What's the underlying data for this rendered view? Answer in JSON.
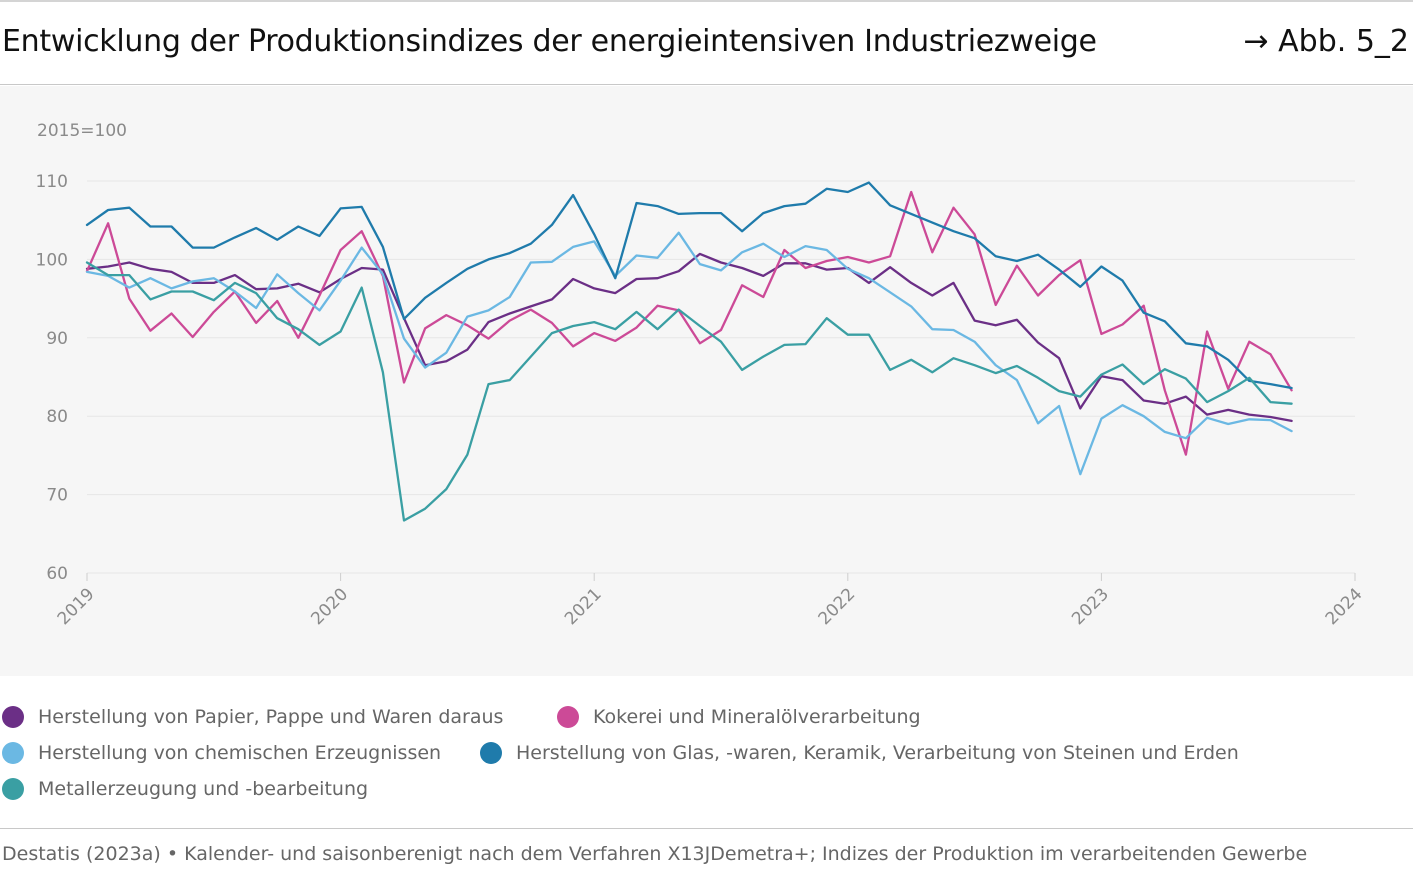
{
  "header": {
    "title": "Entwicklung der Produktionsindizes der energieintensiven Industriezweige",
    "reference": "→ Abb. 5_2"
  },
  "footer": {
    "source": "Destatis (2023a) • Kalender- und saisonberenigt nach dem Verfahren X13JDemetra+; Indizes der Produktion im verarbeitenden Gewerbe"
  },
  "colors": {
    "papier": "#6b2f86",
    "kokerei": "#cc4a97",
    "chemie": "#6bb8e3",
    "glas": "#1f7bab",
    "metall": "#3a9fa3",
    "grid": "#e6e6e6",
    "axis_text": "#8a8a8a"
  },
  "chart_data": {
    "type": "line",
    "unit_label": "2015=100",
    "ylim": [
      60,
      110
    ],
    "yticks": [
      "60",
      "70",
      "80",
      "90",
      "100",
      "110"
    ],
    "xlim": [
      2019,
      2024
    ],
    "xticks": [
      "2019",
      "2020",
      "2021",
      "2022",
      "2023",
      "2024"
    ],
    "grid": true,
    "legend_position": "bottom",
    "series": [
      {
        "name": "Herstellung von Papier, Pappe und Waren daraus",
        "color_key": "papier",
        "values": [
          98.8,
          99.1,
          99.6,
          98.8,
          98.4,
          97.0,
          97.0,
          98.0,
          96.2,
          96.3,
          96.9,
          95.8,
          97.5,
          98.9,
          98.7,
          92.5,
          86.5,
          87.0,
          88.5,
          92.0,
          93.1,
          94.0,
          94.9,
          97.5,
          96.3,
          95.7,
          97.5,
          97.6,
          98.5,
          100.7,
          99.6,
          98.9,
          97.9,
          99.5,
          99.5,
          98.7,
          98.9,
          97.0,
          99.0,
          97.0,
          95.4,
          97.0,
          92.2,
          91.6,
          92.3,
          89.4,
          87.4,
          81.0,
          85.1,
          84.6,
          82.0,
          81.6,
          82.5,
          80.2,
          80.8,
          80.2,
          79.9,
          79.4
        ]
      },
      {
        "name": "Kokerei und Mineralölverarbeitung",
        "color_key": "kokerei",
        "values": [
          98.5,
          104.6,
          95.0,
          90.9,
          93.1,
          90.1,
          93.3,
          95.9,
          91.9,
          94.7,
          90.0,
          95.4,
          101.2,
          103.6,
          97.9,
          84.3,
          91.2,
          92.9,
          91.6,
          89.9,
          92.2,
          93.6,
          91.9,
          88.9,
          90.6,
          89.6,
          91.3,
          94.1,
          93.5,
          89.3,
          91.0,
          96.7,
          95.2,
          101.2,
          98.9,
          99.8,
          100.3,
          99.6,
          100.4,
          108.6,
          100.9,
          106.6,
          103.2,
          94.2,
          99.2,
          95.4,
          98.0,
          99.9,
          90.5,
          91.7,
          94.1,
          83.3,
          75.1,
          90.8,
          83.5,
          89.5,
          87.9,
          83.3
        ]
      },
      {
        "name": "Herstellung von chemischen Erzeugnissen",
        "color_key": "chemie",
        "values": [
          98.4,
          97.9,
          96.4,
          97.6,
          96.3,
          97.2,
          97.6,
          95.9,
          93.8,
          98.1,
          95.7,
          93.5,
          97.3,
          101.5,
          98.1,
          89.9,
          86.2,
          88.1,
          92.7,
          93.5,
          95.2,
          99.6,
          99.7,
          101.6,
          102.3,
          97.9,
          100.5,
          100.2,
          103.4,
          99.4,
          98.6,
          100.9,
          102.0,
          100.3,
          101.7,
          101.2,
          98.8,
          97.6,
          95.8,
          94.0,
          91.1,
          91.0,
          89.5,
          86.5,
          84.6,
          79.1,
          81.3,
          72.6,
          79.7,
          81.4,
          80.0,
          78.0,
          77.2,
          79.8,
          79.0,
          79.6,
          79.5,
          78.1
        ]
      },
      {
        "name": "Herstellung von Glas, -waren, Keramik, Verarbeitung von Steinen und Erden",
        "color_key": "glas",
        "values": [
          104.4,
          106.3,
          106.6,
          104.2,
          104.2,
          101.5,
          101.5,
          102.8,
          104.0,
          102.5,
          104.2,
          103.0,
          106.5,
          106.7,
          101.6,
          92.4,
          95.1,
          97.0,
          98.8,
          100.0,
          100.8,
          102.0,
          104.4,
          108.2,
          103.2,
          97.6,
          107.2,
          106.8,
          105.8,
          105.9,
          105.9,
          103.6,
          105.9,
          106.8,
          107.1,
          109.0,
          108.6,
          109.8,
          106.9,
          105.8,
          104.7,
          103.6,
          102.7,
          100.4,
          99.8,
          100.6,
          98.7,
          96.5,
          99.1,
          97.3,
          93.2,
          92.1,
          89.3,
          88.9,
          87.2,
          84.5,
          84.1,
          83.6
        ]
      },
      {
        "name": "Metallerzeugung und -bearbeitung",
        "color_key": "metall",
        "values": [
          99.6,
          98.0,
          98.0,
          94.9,
          95.9,
          95.9,
          94.8,
          97.0,
          95.7,
          92.5,
          91.1,
          89.1,
          90.8,
          96.4,
          85.6,
          66.7,
          68.2,
          70.7,
          75.1,
          84.1,
          84.6,
          87.6,
          90.6,
          91.5,
          92.0,
          91.1,
          93.3,
          91.1,
          93.6,
          91.5,
          89.5,
          85.9,
          87.6,
          89.1,
          89.2,
          92.5,
          90.4,
          90.4,
          85.9,
          87.2,
          85.6,
          87.4,
          86.5,
          85.5,
          86.4,
          84.9,
          83.2,
          82.5,
          85.3,
          86.6,
          84.1,
          86.0,
          84.8,
          81.8,
          83.2,
          84.9,
          81.8,
          81.6
        ]
      }
    ]
  }
}
